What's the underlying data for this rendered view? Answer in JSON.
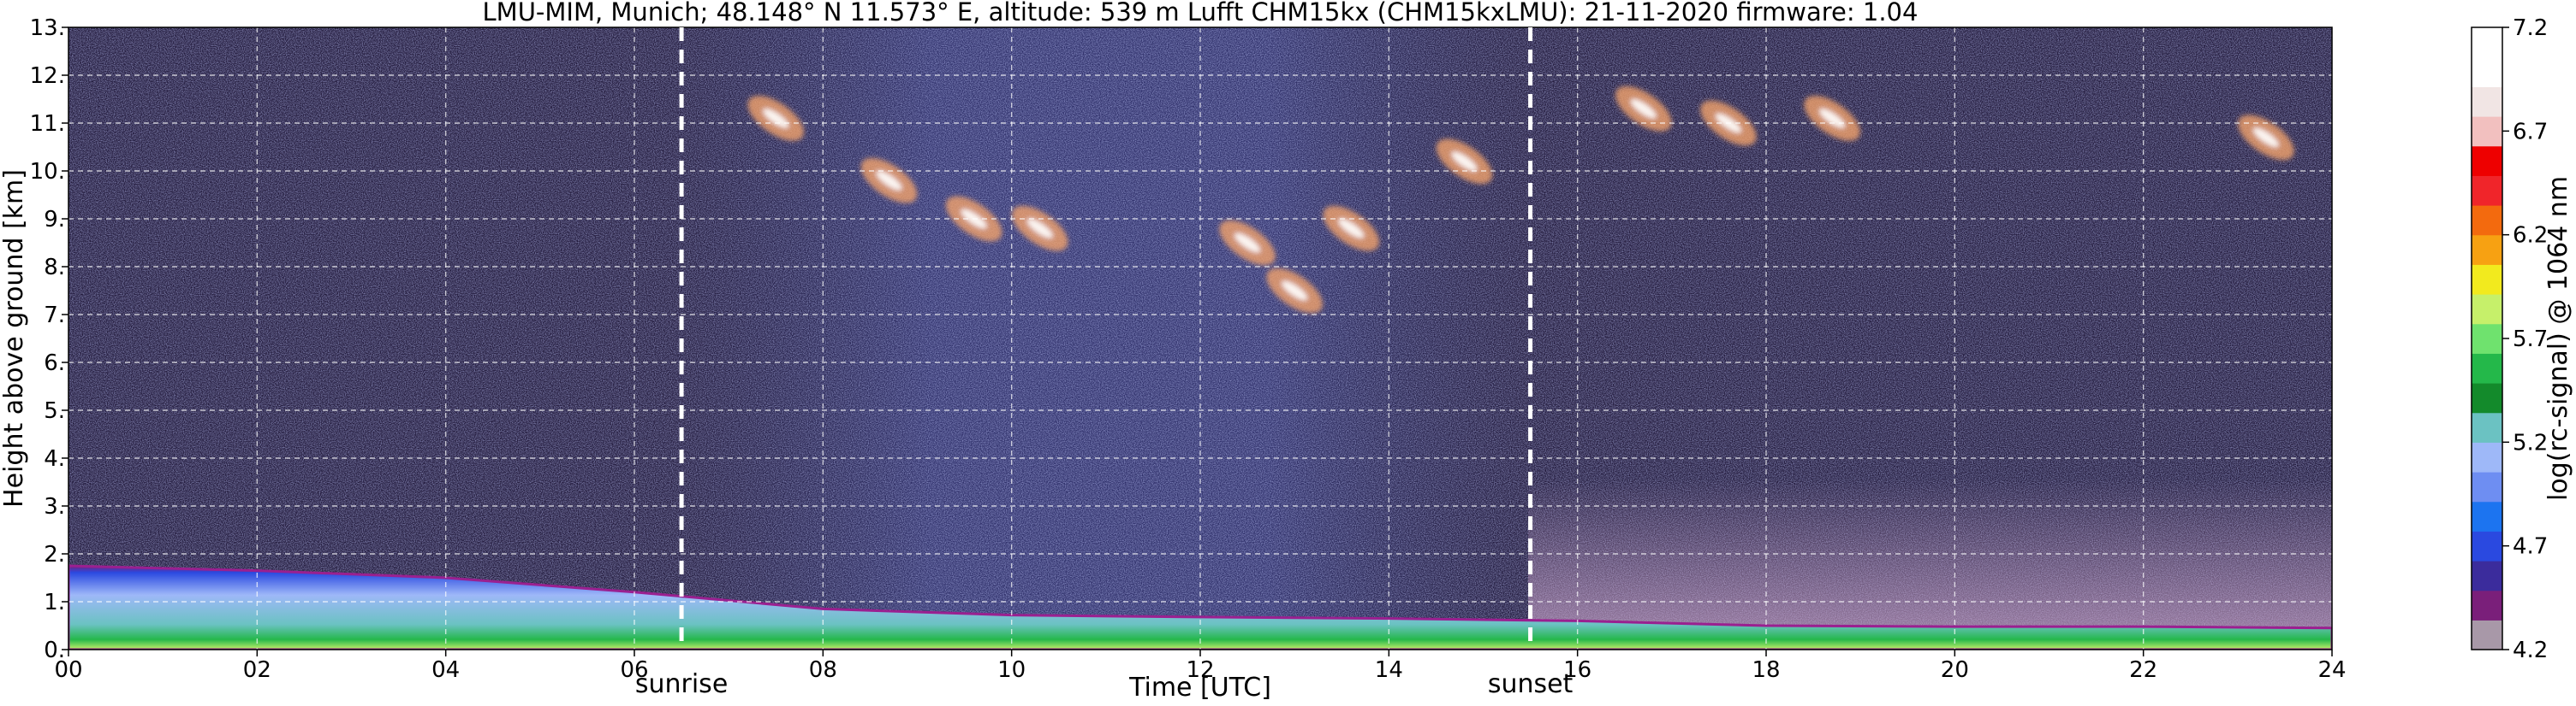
{
  "chart_data": {
    "type": "heatmap",
    "title": "LMU-MIM, Munich; 48.148° N 11.573° E, altitude: 539 m    Lufft CHM15kx (CHM15kxLMU): 21-11-2020    firmware: 1.04",
    "xlabel": "Time [UTC]",
    "ylabel": "Height above ground [km]",
    "x_ticks": [
      "00",
      "02",
      "04",
      "06",
      "08",
      "10",
      "12",
      "14",
      "16",
      "18",
      "20",
      "22",
      "24"
    ],
    "xlim": [
      0,
      24
    ],
    "y_ticks": [
      "0.",
      "1.",
      "2.",
      "3.",
      "4.",
      "5.",
      "6.",
      "7.",
      "8.",
      "9.",
      "10.",
      "11.",
      "12.",
      "13."
    ],
    "ylim": [
      0,
      13
    ],
    "grid": true,
    "annotations": [
      {
        "label": "sunrise",
        "x": 6.5
      },
      {
        "label": "sunset",
        "x": 15.5
      }
    ],
    "colorbar": {
      "label": "log(rc-signal) @ 1064 nm",
      "ticks": [
        "4.2",
        "4.7",
        "5.2",
        "5.7",
        "6.2",
        "6.7",
        "7.2"
      ],
      "range": [
        4.2,
        7.2
      ],
      "colors": [
        "#a898a8",
        "#7a1f7a",
        "#3b2c9c",
        "#2a49e0",
        "#1c74f0",
        "#6e8ef2",
        "#9eb8f8",
        "#6bc2c2",
        "#138a2b",
        "#24b84a",
        "#6fe26e",
        "#c6f06a",
        "#f2ea1e",
        "#f7a112",
        "#f36a0e",
        "#f0252a",
        "#ee0000",
        "#f2c0bf",
        "#f1e5e4",
        "#ffffff",
        "#ffffff"
      ]
    },
    "layers": [
      {
        "name": "boundary layer",
        "x": [
          0,
          2,
          4,
          6,
          8,
          10,
          12,
          14,
          16,
          18,
          20,
          22,
          24
        ],
        "top": [
          1.75,
          1.65,
          1.5,
          1.2,
          0.85,
          0.72,
          0.68,
          0.65,
          0.6,
          0.5,
          0.48,
          0.48,
          0.45
        ]
      }
    ],
    "cirrus": [
      {
        "x": 7.5,
        "y": 11.1
      },
      {
        "x": 8.7,
        "y": 9.8
      },
      {
        "x": 9.6,
        "y": 9.0
      },
      {
        "x": 10.3,
        "y": 8.8
      },
      {
        "x": 12.5,
        "y": 8.5
      },
      {
        "x": 13.0,
        "y": 7.5
      },
      {
        "x": 13.6,
        "y": 8.8
      },
      {
        "x": 14.8,
        "y": 10.2
      },
      {
        "x": 16.7,
        "y": 11.3
      },
      {
        "x": 17.6,
        "y": 11.0
      },
      {
        "x": 18.7,
        "y": 11.1
      },
      {
        "x": 23.3,
        "y": 10.7
      }
    ]
  }
}
